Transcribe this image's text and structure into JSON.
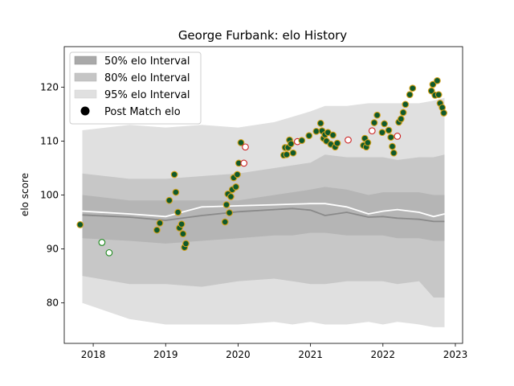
{
  "chart_data": {
    "type": "line",
    "title": "George Furbank: elo History",
    "xlabel": "",
    "ylabel": "elo score",
    "xlim": [
      2017.6,
      2023.1
    ],
    "ylim": [
      72.5,
      127.5
    ],
    "x_ticks": [
      2018,
      2019,
      2020,
      2021,
      2022,
      2023
    ],
    "x_tick_labels": [
      "2018",
      "2019",
      "2020",
      "2021",
      "2022",
      "2023"
    ],
    "y_ticks": [
      80,
      90,
      100,
      110,
      120
    ],
    "y_tick_labels": [
      "80",
      "90",
      "100",
      "110",
      "120"
    ],
    "grid": false,
    "legend_position": "upper-left",
    "legend": [
      {
        "label": "50% elo Interval",
        "kind": "band",
        "color": "#a9a9a9"
      },
      {
        "label": "80% elo Interval",
        "kind": "band",
        "color": "#c5c5c5"
      },
      {
        "label": "95% elo Interval",
        "kind": "band",
        "color": "#e0e0e0"
      },
      {
        "label": "Post Match elo",
        "kind": "marker",
        "color": "#000000"
      }
    ],
    "colors": {
      "band95": "#e0e0e0",
      "band80": "#c7c7c7",
      "band50": "#b5b5b5",
      "median_line": "#8a8a8a",
      "mean_line": "#ffffff",
      "win_fill": "#0f5a2c",
      "win_edge": "#d4a017",
      "loss_fill": "#ffffff",
      "loss_edge_red": "#cc2222",
      "loss_edge_green": "#1c8a1c"
    },
    "bands": {
      "x": [
        2017.85,
        2018.5,
        2019.0,
        2019.5,
        2020.0,
        2020.5,
        2020.75,
        2021.0,
        2021.2,
        2021.5,
        2021.8,
        2022.0,
        2022.2,
        2022.5,
        2022.7,
        2022.85
      ],
      "p95_upper": [
        112,
        113,
        112.5,
        113,
        112.5,
        113.5,
        114.5,
        115.5,
        116.5,
        116.5,
        117,
        117,
        117,
        117,
        117.5,
        118
      ],
      "p95_lower": [
        80,
        77,
        76,
        76,
        76,
        76.5,
        76,
        76.5,
        76,
        76,
        76.5,
        76,
        76.5,
        76,
        75.5,
        75.5
      ],
      "p80_upper": [
        104,
        103,
        103,
        103.5,
        104,
        105,
        105.5,
        106,
        107.5,
        107,
        107,
        107,
        106.5,
        107,
        107,
        107.5
      ],
      "p80_lower": [
        85,
        83.5,
        83.5,
        83,
        84,
        84.5,
        84,
        83.5,
        83.5,
        84,
        84,
        84,
        83.5,
        84,
        81,
        81
      ],
      "p50_upper": [
        100,
        99,
        99,
        99,
        99,
        100,
        100.5,
        101,
        101.5,
        101,
        100,
        100.5,
        100.5,
        100.5,
        100,
        100
      ],
      "p50_lower": [
        92,
        91.5,
        91,
        91.5,
        92,
        92.5,
        92.5,
        93,
        93,
        92.5,
        92.5,
        92.5,
        92,
        92,
        91.5,
        91.5
      ],
      "median": [
        96.3,
        95.9,
        95.3,
        96.2,
        96.9,
        97.3,
        97.5,
        97.2,
        96.2,
        96.8,
        95.9,
        96.0,
        95.7,
        95.5,
        95.1,
        95.1
      ],
      "mean": [
        97.0,
        96.5,
        96.0,
        97.8,
        98.0,
        98.2,
        98.3,
        98.4,
        98.4,
        97.8,
        96.5,
        97.0,
        97.3,
        96.8,
        96.0,
        96.5
      ]
    },
    "matches": [
      {
        "x": 2017.82,
        "y": 94.5,
        "result": "win"
      },
      {
        "x": 2018.12,
        "y": 91.2,
        "result": "loss_green"
      },
      {
        "x": 2018.22,
        "y": 89.3,
        "result": "loss_green"
      },
      {
        "x": 2018.88,
        "y": 93.5,
        "result": "win"
      },
      {
        "x": 2018.92,
        "y": 94.8,
        "result": "win"
      },
      {
        "x": 2019.05,
        "y": 99.0,
        "result": "win"
      },
      {
        "x": 2019.12,
        "y": 103.8,
        "result": "win"
      },
      {
        "x": 2019.14,
        "y": 100.5,
        "result": "win"
      },
      {
        "x": 2019.17,
        "y": 96.8,
        "result": "win"
      },
      {
        "x": 2019.19,
        "y": 93.9,
        "result": "win"
      },
      {
        "x": 2019.22,
        "y": 94.6,
        "result": "win"
      },
      {
        "x": 2019.24,
        "y": 92.8,
        "result": "win"
      },
      {
        "x": 2019.26,
        "y": 90.3,
        "result": "win"
      },
      {
        "x": 2019.28,
        "y": 91.0,
        "result": "win"
      },
      {
        "x": 2019.82,
        "y": 95.0,
        "result": "win"
      },
      {
        "x": 2019.84,
        "y": 98.2,
        "result": "win"
      },
      {
        "x": 2019.86,
        "y": 100.2,
        "result": "win"
      },
      {
        "x": 2019.88,
        "y": 96.7,
        "result": "win"
      },
      {
        "x": 2019.9,
        "y": 99.7,
        "result": "win"
      },
      {
        "x": 2019.92,
        "y": 101.0,
        "result": "win"
      },
      {
        "x": 2019.94,
        "y": 103.2,
        "result": "win"
      },
      {
        "x": 2019.97,
        "y": 101.5,
        "result": "win"
      },
      {
        "x": 2019.99,
        "y": 103.8,
        "result": "win"
      },
      {
        "x": 2020.01,
        "y": 105.9,
        "result": "win"
      },
      {
        "x": 2020.04,
        "y": 109.7,
        "result": "win"
      },
      {
        "x": 2020.08,
        "y": 105.9,
        "result": "loss_red"
      },
      {
        "x": 2020.1,
        "y": 108.9,
        "result": "loss_red"
      },
      {
        "x": 2020.63,
        "y": 107.4,
        "result": "win"
      },
      {
        "x": 2020.65,
        "y": 108.8,
        "result": "win"
      },
      {
        "x": 2020.67,
        "y": 107.5,
        "result": "win"
      },
      {
        "x": 2020.69,
        "y": 108.8,
        "result": "win"
      },
      {
        "x": 2020.71,
        "y": 110.2,
        "result": "win"
      },
      {
        "x": 2020.73,
        "y": 109.5,
        "result": "win"
      },
      {
        "x": 2020.76,
        "y": 107.8,
        "result": "win"
      },
      {
        "x": 2020.82,
        "y": 109.9,
        "result": "loss_red"
      },
      {
        "x": 2020.88,
        "y": 110.1,
        "result": "win"
      },
      {
        "x": 2020.98,
        "y": 111.0,
        "result": "win"
      },
      {
        "x": 2021.08,
        "y": 111.8,
        "result": "win"
      },
      {
        "x": 2021.14,
        "y": 113.3,
        "result": "win"
      },
      {
        "x": 2021.16,
        "y": 111.9,
        "result": "win"
      },
      {
        "x": 2021.18,
        "y": 110.5,
        "result": "win"
      },
      {
        "x": 2021.2,
        "y": 111.2,
        "result": "win"
      },
      {
        "x": 2021.22,
        "y": 110.0,
        "result": "win"
      },
      {
        "x": 2021.24,
        "y": 111.6,
        "result": "win"
      },
      {
        "x": 2021.28,
        "y": 109.4,
        "result": "win"
      },
      {
        "x": 2021.31,
        "y": 111.1,
        "result": "win"
      },
      {
        "x": 2021.34,
        "y": 108.9,
        "result": "win"
      },
      {
        "x": 2021.37,
        "y": 109.6,
        "result": "win"
      },
      {
        "x": 2021.52,
        "y": 110.2,
        "result": "loss_red"
      },
      {
        "x": 2021.73,
        "y": 109.2,
        "result": "win"
      },
      {
        "x": 2021.75,
        "y": 110.5,
        "result": "win"
      },
      {
        "x": 2021.77,
        "y": 108.9,
        "result": "win"
      },
      {
        "x": 2021.79,
        "y": 109.7,
        "result": "win"
      },
      {
        "x": 2021.85,
        "y": 111.9,
        "result": "loss_red"
      },
      {
        "x": 2021.88,
        "y": 113.4,
        "result": "win"
      },
      {
        "x": 2021.92,
        "y": 114.8,
        "result": "win"
      },
      {
        "x": 2021.99,
        "y": 111.6,
        "result": "win"
      },
      {
        "x": 2022.02,
        "y": 113.2,
        "result": "win"
      },
      {
        "x": 2022.08,
        "y": 112.0,
        "result": "win"
      },
      {
        "x": 2022.11,
        "y": 110.7,
        "result": "win"
      },
      {
        "x": 2022.13,
        "y": 109.0,
        "result": "win"
      },
      {
        "x": 2022.15,
        "y": 107.8,
        "result": "win"
      },
      {
        "x": 2022.2,
        "y": 110.9,
        "result": "loss_red"
      },
      {
        "x": 2022.22,
        "y": 113.5,
        "result": "win"
      },
      {
        "x": 2022.25,
        "y": 114.1,
        "result": "win"
      },
      {
        "x": 2022.28,
        "y": 115.3,
        "result": "win"
      },
      {
        "x": 2022.31,
        "y": 116.8,
        "result": "win"
      },
      {
        "x": 2022.37,
        "y": 118.6,
        "result": "win"
      },
      {
        "x": 2022.41,
        "y": 119.8,
        "result": "win"
      },
      {
        "x": 2022.67,
        "y": 119.3,
        "result": "win"
      },
      {
        "x": 2022.69,
        "y": 120.5,
        "result": "win"
      },
      {
        "x": 2022.72,
        "y": 118.5,
        "result": "win"
      },
      {
        "x": 2022.75,
        "y": 121.2,
        "result": "win"
      },
      {
        "x": 2022.77,
        "y": 118.6,
        "result": "win"
      },
      {
        "x": 2022.79,
        "y": 117.0,
        "result": "win"
      },
      {
        "x": 2022.82,
        "y": 116.2,
        "result": "win"
      },
      {
        "x": 2022.84,
        "y": 115.2,
        "result": "win"
      }
    ]
  }
}
